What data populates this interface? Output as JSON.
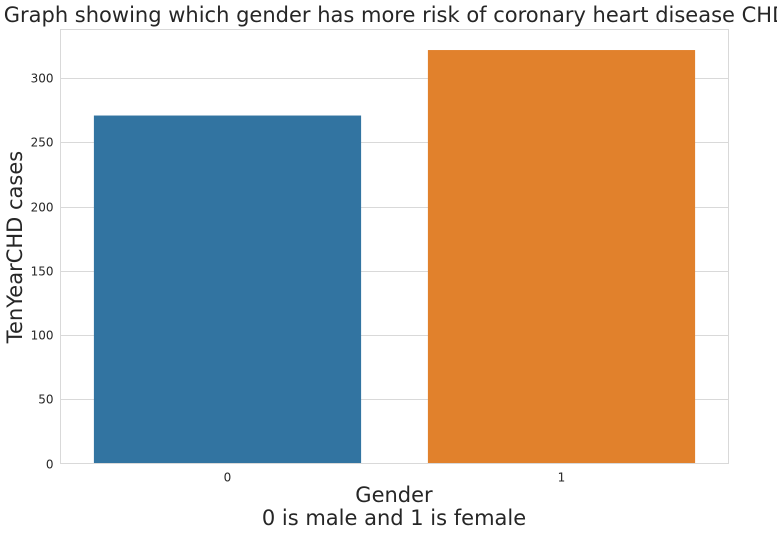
{
  "chart_data": {
    "type": "bar",
    "title": "Graph showing which gender has more risk of coronary heart disease CHD",
    "xlabel_lines": [
      "Gender",
      "0 is male and 1 is female"
    ],
    "ylabel": "TenYearCHD cases",
    "categories": [
      "0",
      "1"
    ],
    "values": [
      271,
      322
    ],
    "colors": [
      "#3274a1",
      "#e1812c"
    ],
    "ylim": [
      0,
      338
    ],
    "yticks": [
      0,
      50,
      100,
      150,
      200,
      250,
      300
    ],
    "grid": true
  }
}
